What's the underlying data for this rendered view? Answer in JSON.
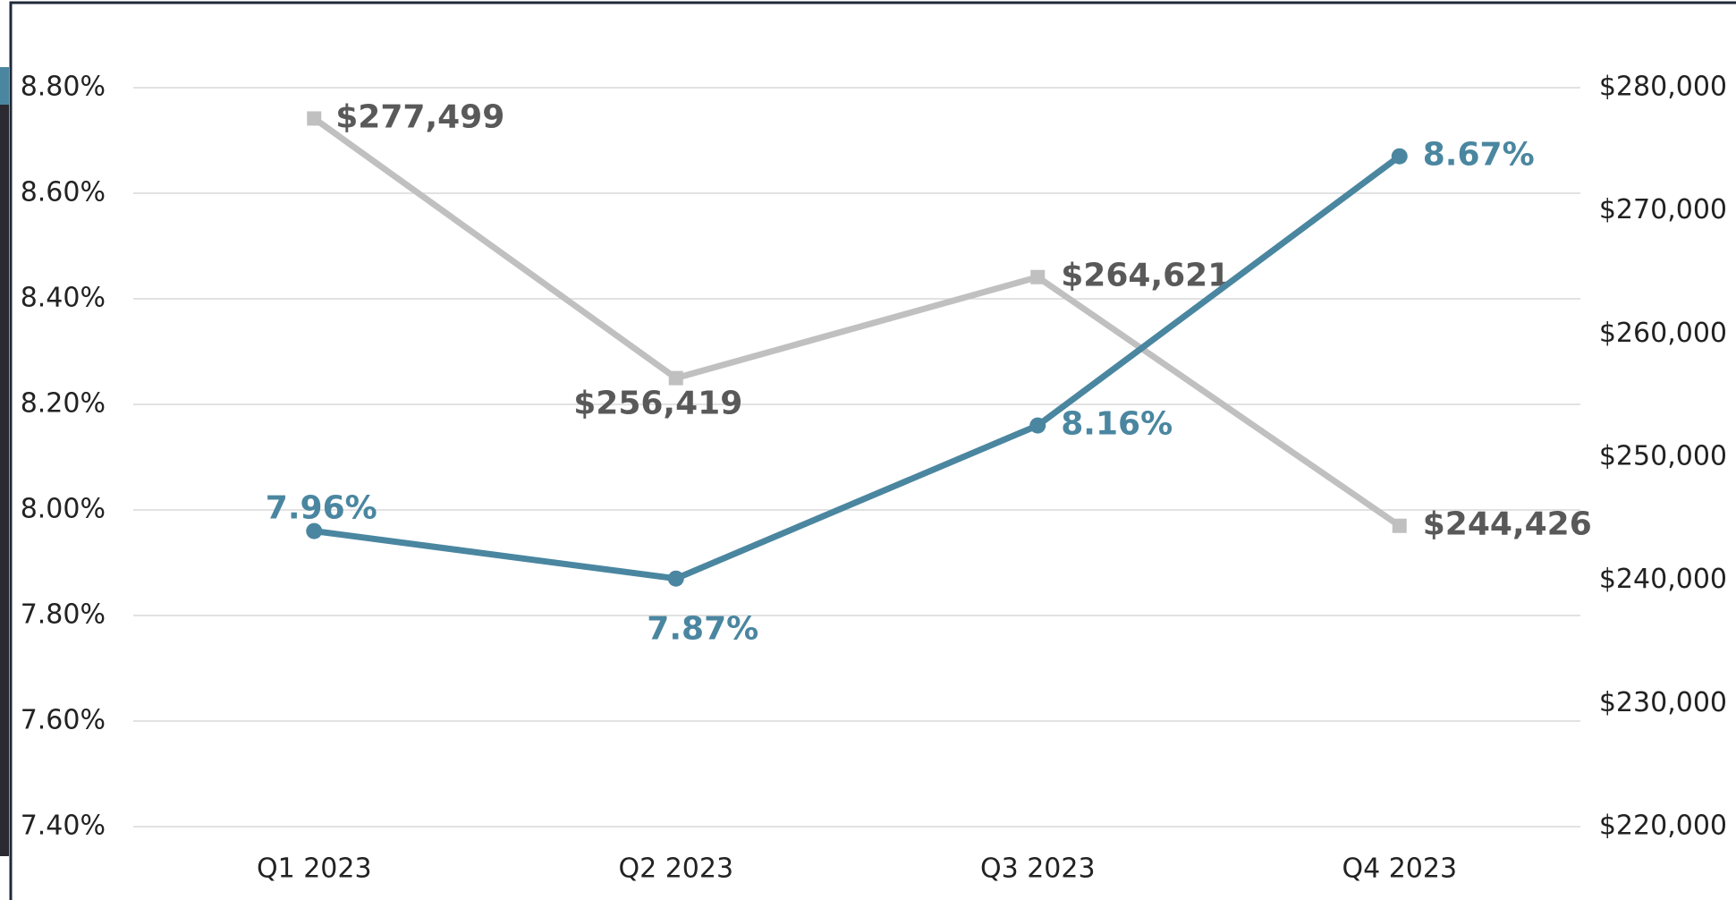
{
  "chart_data": {
    "type": "line",
    "categories": [
      "Q1 2023",
      "Q2 2023",
      "Q3 2023",
      "Q4 2023"
    ],
    "series": [
      {
        "color": "#4a86a0",
        "values": [
          7.96,
          7.87,
          8.16,
          8.67
        ],
        "value_labels": [
          "7.96%",
          "7.87%",
          "8.16%",
          "8.67%"
        ],
        "axis": "y"
      },
      {
        "color": "#c0c0c0",
        "values": [
          277499,
          256419,
          264621,
          244426
        ],
        "value_labels": [
          "$277,499",
          "$256,419",
          "$264,621",
          "$244,426"
        ],
        "axis": "y2"
      }
    ],
    "ylim": [
      7.4,
      8.8
    ],
    "yticks": [
      {
        "value": 7.4,
        "label": "7.40%"
      },
      {
        "value": 7.6,
        "label": "7.60%"
      },
      {
        "value": 7.8,
        "label": "7.80%"
      },
      {
        "value": 8.0,
        "label": "8.00%"
      },
      {
        "value": 8.2,
        "label": "8.20%"
      },
      {
        "value": 8.4,
        "label": "8.40%"
      },
      {
        "value": 8.6,
        "label": "8.60%"
      },
      {
        "value": 8.8,
        "label": "8.80%"
      }
    ],
    "y2lim": [
      220000,
      280000
    ],
    "y2ticks": [
      {
        "value": 220000,
        "label": "$220,000"
      },
      {
        "value": 230000,
        "label": "$230,000"
      },
      {
        "value": 240000,
        "label": "$240,000"
      },
      {
        "value": 250000,
        "label": "$250,000"
      },
      {
        "value": 260000,
        "label": "$260,000"
      },
      {
        "value": 270000,
        "label": "$270,000"
      },
      {
        "value": 280000,
        "label": "$280,000"
      }
    ],
    "grid": true
  }
}
